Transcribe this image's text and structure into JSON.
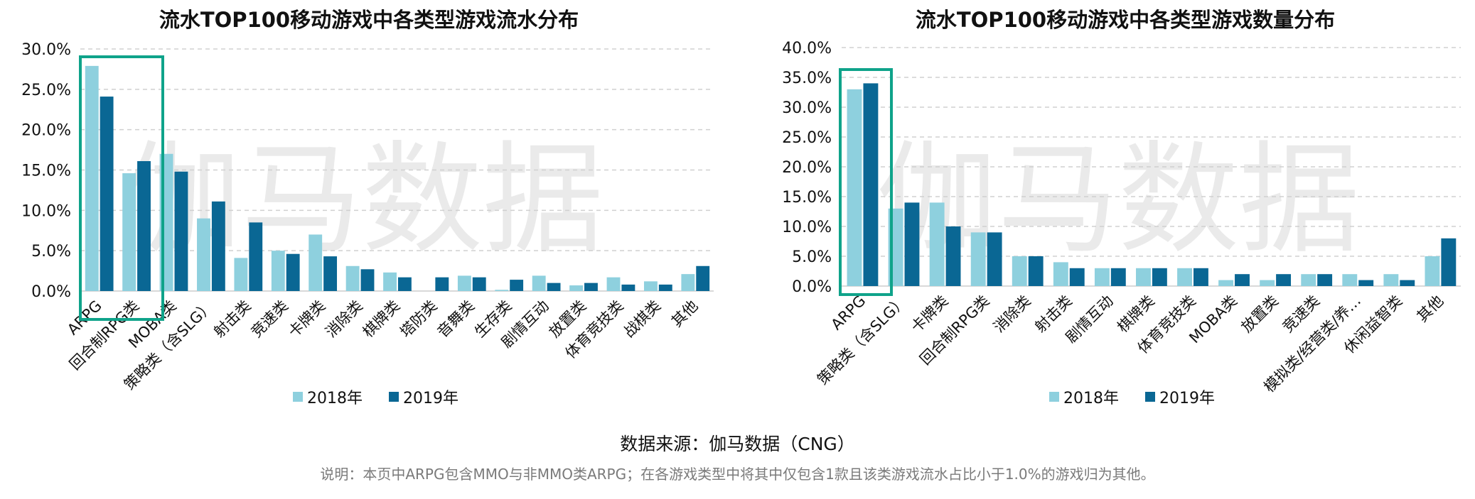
{
  "watermark": "伽马数据",
  "colors": {
    "y2018": "#8ed0de",
    "y2019": "#0a6794",
    "highlight": "#0fa38a",
    "grid": "#d0d0d0"
  },
  "source": "数据来源：伽马数据（CNG）",
  "note": "说明：本页中ARPG包含MMO与非MMO类ARPG；在各游戏类型中将其中仅包含1款且该类游戏流水占比小于1.0%的游戏归为其他。",
  "chart_data": [
    {
      "type": "bar",
      "title": "流水TOP100移动游戏中各类型游戏流水分布",
      "categories": [
        "ARPG",
        "回合制RPG类",
        "MOBA类",
        "策略类（含SLG）",
        "射击类",
        "竞速类",
        "卡牌类",
        "消除类",
        "棋牌类",
        "塔防类",
        "音舞类",
        "生存类",
        "剧情互动",
        "放置类",
        "体育竞技类",
        "战棋类",
        "其他"
      ],
      "series": [
        {
          "name": "2018年",
          "values": [
            27.9,
            14.6,
            17.0,
            9.0,
            4.1,
            5.0,
            7.0,
            3.1,
            2.3,
            0.0,
            1.9,
            0.15,
            1.9,
            0.7,
            1.7,
            1.2,
            2.1
          ]
        },
        {
          "name": "2019年",
          "values": [
            24.1,
            16.1,
            14.8,
            11.1,
            8.5,
            4.6,
            4.3,
            2.7,
            1.7,
            1.7,
            1.7,
            1.4,
            1.0,
            1.0,
            0.8,
            0.8,
            3.1
          ]
        }
      ],
      "yticks": [
        "0.0%",
        "5.0%",
        "10.0%",
        "15.0%",
        "20.0%",
        "25.0%",
        "30.0%"
      ],
      "ylim": [
        0,
        30
      ],
      "highlight": [
        "ARPG",
        "回合制RPG类"
      ],
      "grid": true,
      "legend": "bottom-center"
    },
    {
      "type": "bar",
      "title": "流水TOP100移动游戏中各类型游戏数量分布",
      "categories": [
        "ARPG",
        "策略类（含SLG）",
        "卡牌类",
        "回合制RPG类",
        "消除类",
        "射击类",
        "剧情互动",
        "棋牌类",
        "体育竞技类",
        "MOBA类",
        "放置类",
        "竞速类",
        "模拟类/经营类/养…",
        "休闲益智类",
        "其他"
      ],
      "series": [
        {
          "name": "2018年",
          "values": [
            33,
            13,
            14,
            9,
            5,
            4,
            3,
            3,
            3,
            1,
            1,
            2,
            2,
            2,
            5
          ]
        },
        {
          "name": "2019年",
          "values": [
            34,
            14,
            10,
            9,
            5,
            3,
            3,
            3,
            3,
            2,
            2,
            2,
            1,
            1,
            8
          ]
        }
      ],
      "yticks": [
        "0.0%",
        "5.0%",
        "10.0%",
        "15.0%",
        "20.0%",
        "25.0%",
        "30.0%",
        "35.0%",
        "40.0%"
      ],
      "ylim": [
        0,
        40
      ],
      "highlight": [
        "ARPG"
      ],
      "grid": true,
      "legend": "bottom-center"
    }
  ]
}
